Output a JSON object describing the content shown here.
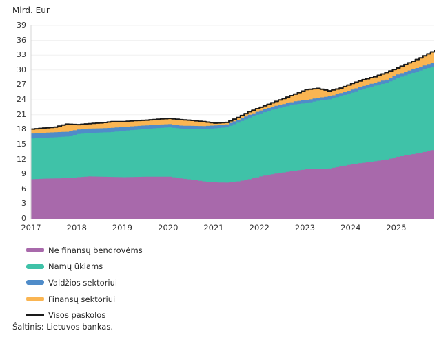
{
  "title": "Mlrd. Eur",
  "source": "Šaltinis: Lietuvos bankas.",
  "chart_data": {
    "type": "area",
    "stacked": true,
    "title": "Mlrd. Eur",
    "ylabel": "Mlrd. Eur",
    "xlabel": "",
    "ylim": [
      0,
      39
    ],
    "y_ticks": [
      0,
      3,
      6,
      9,
      12,
      15,
      18,
      21,
      24,
      27,
      30,
      33,
      36,
      39
    ],
    "x_tick_labels": [
      "2017",
      "2018",
      "2019",
      "2020",
      "2021",
      "2022",
      "2023",
      "2024",
      "2025"
    ],
    "grid": "horizontal",
    "legend_position": "bottom-left",
    "x": [
      2017.0,
      2017.25,
      2017.5,
      2017.75,
      2018.0,
      2018.25,
      2018.5,
      2018.75,
      2019.0,
      2019.25,
      2019.5,
      2019.75,
      2020.0,
      2020.25,
      2020.5,
      2020.75,
      2021.0,
      2021.25,
      2021.5,
      2021.75,
      2022.0,
      2022.25,
      2022.5,
      2022.75,
      2023.0,
      2023.25,
      2023.5,
      2023.75,
      2024.0,
      2024.25,
      2024.5,
      2024.75,
      2025.0,
      2025.25,
      2025.5,
      2025.75,
      2025.83
    ],
    "series": [
      {
        "name": "Ne finansų bendrovėms",
        "type": "area",
        "color": "#a869ab",
        "values": [
          8.0,
          8.1,
          8.15,
          8.2,
          8.4,
          8.55,
          8.5,
          8.45,
          8.4,
          8.45,
          8.5,
          8.5,
          8.5,
          8.15,
          7.9,
          7.55,
          7.35,
          7.3,
          7.55,
          8.0,
          8.55,
          9.0,
          9.35,
          9.7,
          10.0,
          10.0,
          10.15,
          10.55,
          11.0,
          11.3,
          11.6,
          11.95,
          12.5,
          12.9,
          13.3,
          13.85,
          14.0
        ]
      },
      {
        "name": "Namų ūkiams",
        "type": "area",
        "color": "#3fc2a8",
        "values": [
          8.2,
          8.25,
          8.3,
          8.4,
          8.7,
          8.75,
          8.9,
          9.05,
          9.35,
          9.5,
          9.65,
          9.8,
          9.95,
          10.05,
          10.25,
          10.55,
          10.9,
          11.15,
          11.85,
          12.45,
          12.7,
          13.0,
          13.2,
          13.4,
          13.35,
          13.8,
          13.95,
          14.2,
          14.45,
          14.9,
          15.25,
          15.45,
          15.9,
          16.3,
          16.6,
          16.8,
          16.9
        ]
      },
      {
        "name": "Valdžios sektoriui",
        "type": "area",
        "color": "#4f8cc9",
        "values": [
          1.0,
          1.0,
          1.0,
          0.95,
          0.9,
          0.9,
          0.85,
          0.85,
          0.8,
          0.75,
          0.7,
          0.7,
          0.65,
          0.6,
          0.6,
          0.6,
          0.6,
          0.6,
          0.55,
          0.55,
          0.6,
          0.6,
          0.6,
          0.6,
          0.6,
          0.6,
          0.6,
          0.6,
          0.6,
          0.6,
          0.6,
          0.65,
          0.7,
          0.7,
          0.75,
          0.8,
          0.8
        ]
      },
      {
        "name": "Finansų sektoriui",
        "type": "area",
        "color": "#fab552",
        "values": [
          0.9,
          0.95,
          1.05,
          1.55,
          1.0,
          1.0,
          1.1,
          1.25,
          1.05,
          1.1,
          1.05,
          1.1,
          1.15,
          1.2,
          1.1,
          0.9,
          0.45,
          0.4,
          0.5,
          0.6,
          0.65,
          0.8,
          1.1,
          1.45,
          2.1,
          1.9,
          1.1,
          1.0,
          1.25,
          1.25,
          1.2,
          1.45,
          1.3,
          1.55,
          1.8,
          2.2,
          2.3
        ]
      },
      {
        "name": "Visos paskolos",
        "type": "line",
        "color": "#1a1a1a",
        "values": [
          18.1,
          18.3,
          18.5,
          19.1,
          19.0,
          19.2,
          19.35,
          19.6,
          19.6,
          19.8,
          19.9,
          20.1,
          20.25,
          20.0,
          19.85,
          19.6,
          19.3,
          19.45,
          20.45,
          21.6,
          22.5,
          23.4,
          24.25,
          25.15,
          26.05,
          26.3,
          25.8,
          26.35,
          27.3,
          28.05,
          28.65,
          29.5,
          30.4,
          31.45,
          32.45,
          33.65,
          34.0
        ]
      }
    ]
  },
  "legend": {
    "items": [
      {
        "label": "Ne finansų bendrovėms"
      },
      {
        "label": "Namų ūkiams"
      },
      {
        "label": "Valdžios sektoriui"
      },
      {
        "label": "Finansų sektoriui"
      },
      {
        "label": "Visos paskolos"
      }
    ]
  },
  "layout_colors": {
    "gridline": "#f0f0f0",
    "axis_line": "#d4d4d4",
    "background": "#ffffff"
  }
}
